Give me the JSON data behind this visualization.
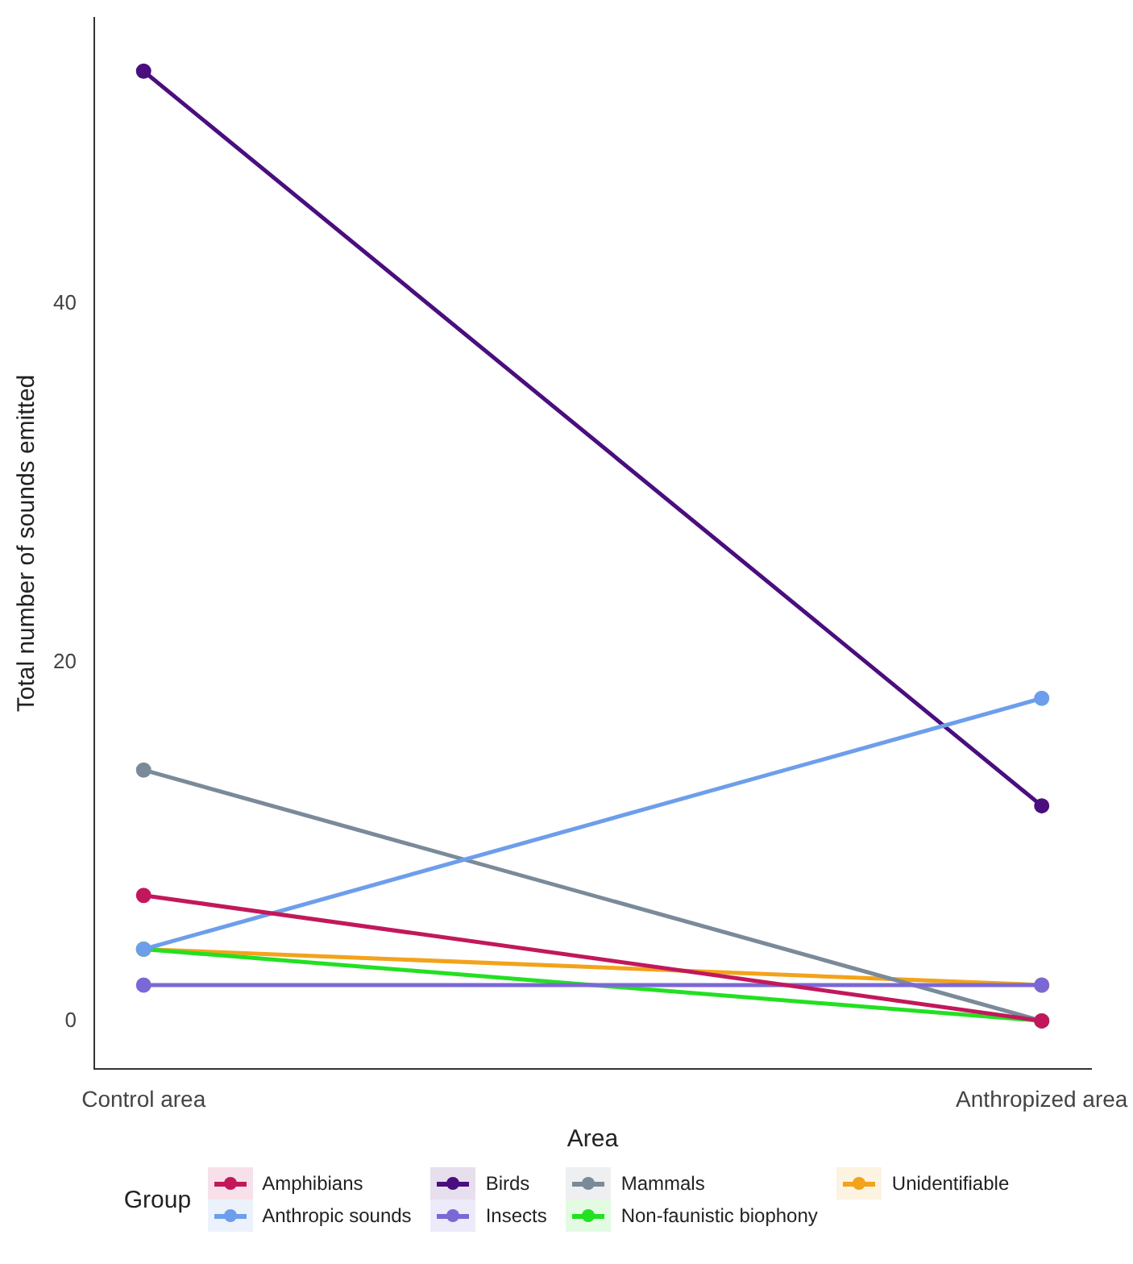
{
  "chart_data": {
    "type": "line",
    "xlabel": "Area",
    "ylabel": "Total number of sounds emitted",
    "legend_title": "Group",
    "legend": "bottom",
    "grid": false,
    "marker": "circle",
    "line_style": "solid",
    "categories": [
      "Control area",
      "Anthropized area"
    ],
    "ylim": [
      -2.7,
      56
    ],
    "yticks": [
      0,
      20,
      40
    ],
    "series": [
      {
        "name": "Amphibians",
        "color": "#c2185b",
        "values": [
          7,
          0
        ]
      },
      {
        "name": "Anthropic sounds",
        "color": "#6d9eeb",
        "values": [
          4,
          18
        ]
      },
      {
        "name": "Birds",
        "color": "#4a0e7e",
        "values": [
          53,
          12
        ]
      },
      {
        "name": "Insects",
        "color": "#7b68d6",
        "values": [
          2,
          2
        ]
      },
      {
        "name": "Mammals",
        "color": "#7a8a99",
        "values": [
          14,
          0
        ]
      },
      {
        "name": "Non-faunistic biophony",
        "color": "#22e022",
        "values": [
          4,
          0
        ]
      },
      {
        "name": "Unidentifiable",
        "color": "#f2a31b",
        "values": [
          4,
          2
        ]
      }
    ]
  }
}
